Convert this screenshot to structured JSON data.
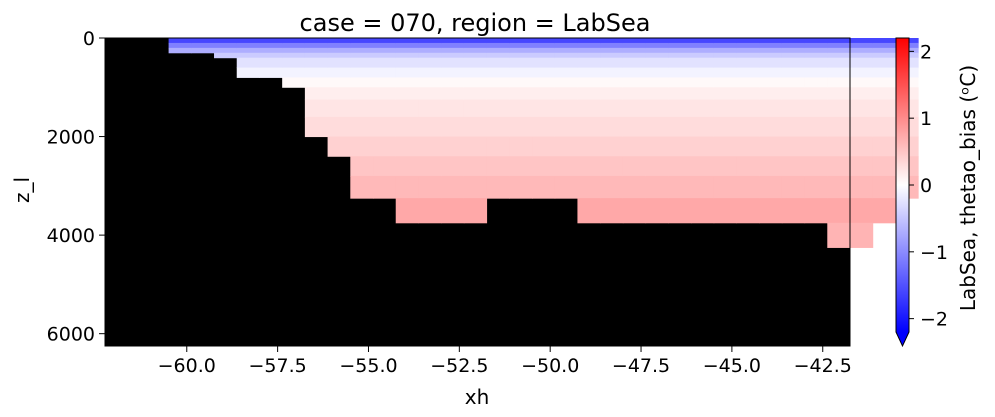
{
  "chart_data": {
    "type": "heatmap",
    "title": "case = 070, region = LabSea",
    "xlabel": "xh",
    "ylabel": "z_l",
    "colorbar_label": "LabSea, thetao_bias (ᵒC)",
    "xlim": [
      -62.25,
      -41.75
    ],
    "ylim": [
      6250,
      0
    ],
    "x_ticks": [
      -60.0,
      -57.5,
      -55.0,
      -52.5,
      -50.0,
      -47.5,
      -45.0,
      -42.5
    ],
    "x_tick_labels": [
      "−60.0",
      "−57.5",
      "−55.0",
      "−52.5",
      "−50.0",
      "−47.5",
      "−45.0",
      "−42.5"
    ],
    "y_ticks": [
      0,
      2000,
      4000,
      6000
    ],
    "y_tick_labels": [
      "0",
      "2000",
      "4000",
      "6000"
    ],
    "colorbar_ticks": [
      -2,
      -1,
      0,
      1,
      2
    ],
    "colorbar_tick_labels": [
      "−2",
      "−1",
      "0",
      "1",
      "2"
    ],
    "colorbar_range": [
      -2.2,
      2.2
    ],
    "colorbar_extend": "min",
    "colormap": "bwr",
    "missing_color": "#000000",
    "cell_width_deg": 0.625,
    "cell_x_start": -60.5,
    "z_edges": [
      0,
      100,
      200,
      300,
      400,
      600,
      800,
      1000,
      1250,
      1600,
      2000,
      2400,
      2800,
      3250,
      3750,
      4250,
      4750,
      5250,
      5750,
      6250
    ],
    "bottom_level_index": [
      3,
      3,
      4,
      6,
      6,
      7,
      10,
      11,
      13,
      13,
      14,
      14,
      14,
      14,
      13,
      13,
      13,
      13,
      14,
      14,
      14,
      14,
      14,
      14,
      14,
      14,
      14,
      14,
      14,
      15,
      15,
      14,
      13
    ],
    "cell_bias_by_depth_range": [
      {
        "z": [
          0,
          100
        ],
        "value": -1.6
      },
      {
        "z": [
          100,
          200
        ],
        "value": -1.1
      },
      {
        "z": [
          200,
          300
        ],
        "value": -0.7
      },
      {
        "z": [
          300,
          400
        ],
        "value": -0.45
      },
      {
        "z": [
          400,
          600
        ],
        "value": -0.25
      },
      {
        "z": [
          600,
          800
        ],
        "value": -0.1
      },
      {
        "z": [
          800,
          1000
        ],
        "value": 0.05
      },
      {
        "z": [
          1000,
          1250
        ],
        "value": 0.15
      },
      {
        "z": [
          1250,
          1600
        ],
        "value": 0.22
      },
      {
        "z": [
          1600,
          2000
        ],
        "value": 0.3
      },
      {
        "z": [
          2000,
          2400
        ],
        "value": 0.4
      },
      {
        "z": [
          2400,
          2800
        ],
        "value": 0.5
      },
      {
        "z": [
          2800,
          3250
        ],
        "value": 0.6
      },
      {
        "z": [
          3250,
          3750
        ],
        "value": 0.75
      },
      {
        "z": [
          3750,
          4250
        ],
        "value": 0.65
      }
    ]
  }
}
